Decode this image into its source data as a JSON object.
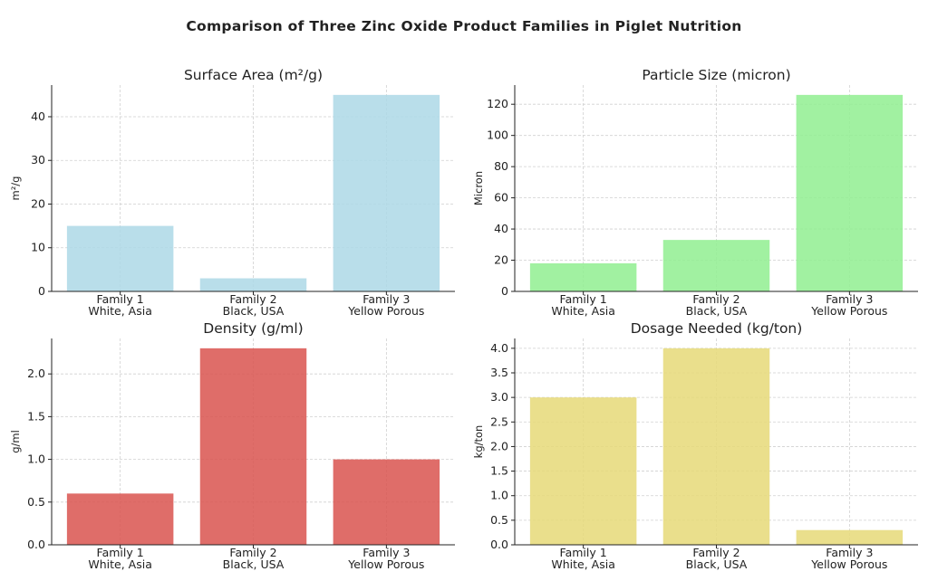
{
  "title": "Comparison of Three Zinc Oxide Product Families in Piglet Nutrition",
  "chart_data": [
    {
      "type": "bar",
      "title": "Surface Area (m²/g)",
      "ylabel": "m²/g",
      "categories": [
        "Family 1\nWhite, Asia",
        "Family 2\nBlack, USA",
        "Family 3\nYellow Porous"
      ],
      "values": [
        15,
        3,
        45
      ],
      "color": "#add8e6",
      "ylim": [
        0,
        47.25
      ],
      "yticks": [
        0,
        10,
        20,
        30,
        40
      ],
      "tick_labels": [
        "0",
        "10",
        "20",
        "30",
        "40"
      ],
      "grid": true
    },
    {
      "type": "bar",
      "title": "Particle Size (micron)",
      "ylabel": "Micron",
      "categories": [
        "Family 1\nWhite, Asia",
        "Family 2\nBlack, USA",
        "Family 3\nYellow Porous"
      ],
      "values": [
        18,
        33,
        126
      ],
      "color": "#90ee90",
      "ylim": [
        0,
        132.3
      ],
      "yticks": [
        0,
        20,
        40,
        60,
        80,
        100,
        120
      ],
      "tick_labels": [
        "0",
        "20",
        "40",
        "60",
        "80",
        "100",
        "120"
      ],
      "grid": true
    },
    {
      "type": "bar",
      "title": "Density (g/ml)",
      "ylabel": "g/ml",
      "categories": [
        "Family 1\nWhite, Asia",
        "Family 2\nBlack, USA",
        "Family 3\nYellow Porous"
      ],
      "values": [
        0.6,
        2.3,
        1.0
      ],
      "color": "#d9534f",
      "ylim": [
        0,
        2.415
      ],
      "yticks": [
        0,
        0.5,
        1.0,
        1.5,
        2.0
      ],
      "tick_labels": [
        "0.0",
        "0.5",
        "1.0",
        "1.5",
        "2.0"
      ],
      "grid": true
    },
    {
      "type": "bar",
      "title": "Dosage Needed (kg/ton)",
      "ylabel": "kg/ton",
      "categories": [
        "Family 1\nWhite, Asia",
        "Family 2\nBlack, USA",
        "Family 3\nYellow Porous"
      ],
      "values": [
        3.0,
        4.0,
        0.3
      ],
      "color": "#e6d978",
      "ylim": [
        0,
        4.2
      ],
      "yticks": [
        0,
        0.5,
        1.0,
        1.5,
        2.0,
        2.5,
        3.0,
        3.5,
        4.0
      ],
      "tick_labels": [
        "0.0",
        "0.5",
        "1.0",
        "1.5",
        "2.0",
        "2.5",
        "3.0",
        "3.5",
        "4.0"
      ],
      "grid": true
    }
  ]
}
